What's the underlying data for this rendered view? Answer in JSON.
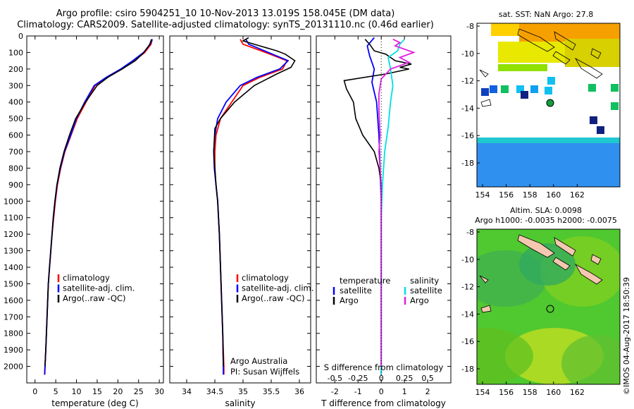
{
  "header": {
    "title_line1": "Argo profile: csiro 5904251_10 10-Nov-2013 13.019S 158.045E (DM data)",
    "title_line2": "Climatology: CARS2009. Satellite-adjusted climatology: synTS_20131110.nc (0.46d earlier)"
  },
  "colors": {
    "climatology": "#ff0000",
    "satellite": "#0000ff",
    "argo": "#000000",
    "satellite_s": "#00e0e0",
    "argo_s": "#e020e0"
  },
  "chart_data": [
    {
      "type": "line",
      "name": "temperature",
      "xlabel": "temperature (deg C)",
      "ylabel": "",
      "xlim": [
        -2,
        31
      ],
      "ylim": [
        0,
        2100
      ],
      "xticks": [
        0,
        5,
        10,
        15,
        20,
        25,
        30
      ],
      "yticks": [
        0,
        100,
        200,
        300,
        400,
        500,
        600,
        700,
        800,
        900,
        1000,
        1100,
        1200,
        1300,
        1400,
        1500,
        1600,
        1700,
        1800,
        1900,
        2000
      ],
      "legend": [
        "climatology",
        "satellite-adj. clim.",
        "Argo(..raw -QC)"
      ],
      "series": [
        {
          "name": "climatology",
          "color": "#ff0000",
          "points": [
            [
              28.3,
              20
            ],
            [
              28.0,
              50
            ],
            [
              26.5,
              100
            ],
            [
              24,
              150
            ],
            [
              21,
              200
            ],
            [
              17.5,
              250
            ],
            [
              14.5,
              300
            ],
            [
              12.3,
              400
            ],
            [
              10.2,
              500
            ],
            [
              8.7,
              600
            ],
            [
              7.2,
              700
            ],
            [
              6.2,
              800
            ],
            [
              5.4,
              900
            ],
            [
              4.9,
              1000
            ],
            [
              4.5,
              1100
            ],
            [
              4.1,
              1200
            ],
            [
              3.8,
              1300
            ],
            [
              3.5,
              1400
            ],
            [
              3.2,
              1500
            ],
            [
              2.9,
              1700
            ],
            [
              2.6,
              1900
            ],
            [
              2.4,
              2000
            ],
            [
              2.35,
              2050
            ]
          ]
        },
        {
          "name": "satellite-adj. clim.",
          "color": "#0000ff",
          "points": [
            [
              28.3,
              20
            ],
            [
              27.8,
              50
            ],
            [
              26.2,
              100
            ],
            [
              23.6,
              150
            ],
            [
              20.7,
              200
            ],
            [
              17.2,
              250
            ],
            [
              14.3,
              300
            ],
            [
              12.0,
              400
            ],
            [
              10.0,
              500
            ],
            [
              8.6,
              600
            ],
            [
              7.1,
              700
            ],
            [
              6.1,
              800
            ],
            [
              5.3,
              900
            ],
            [
              4.8,
              1000
            ],
            [
              4.4,
              1100
            ],
            [
              4.1,
              1200
            ],
            [
              3.8,
              1300
            ],
            [
              3.5,
              1400
            ],
            [
              3.2,
              1500
            ],
            [
              2.9,
              1700
            ],
            [
              2.6,
              1900
            ],
            [
              2.4,
              2000
            ],
            [
              2.3,
              2050
            ]
          ]
        },
        {
          "name": "Argo(..raw -QC)",
          "color": "#000000",
          "points": [
            [
              28.1,
              20
            ],
            [
              27.7,
              50
            ],
            [
              26.3,
              100
            ],
            [
              24.2,
              150
            ],
            [
              21.0,
              200
            ],
            [
              17.6,
              250
            ],
            [
              15.0,
              300
            ],
            [
              12.2,
              400
            ],
            [
              9.8,
              500
            ],
            [
              8.3,
              600
            ],
            [
              7.0,
              700
            ],
            [
              6.0,
              800
            ],
            [
              5.3,
              900
            ],
            [
              4.8,
              1000
            ],
            [
              4.4,
              1100
            ],
            [
              4.1,
              1200
            ],
            [
              3.8,
              1300
            ],
            [
              3.5,
              1400
            ],
            [
              3.2,
              1500
            ],
            [
              2.9,
              1700
            ],
            [
              2.6,
              1900
            ],
            [
              2.4,
              2000
            ]
          ]
        }
      ]
    },
    {
      "type": "line",
      "name": "salinity",
      "xlabel": "salinity",
      "xlim": [
        33.7,
        36.2
      ],
      "ylim": [
        0,
        2100
      ],
      "xticks": [
        34,
        34.5,
        35,
        35.5,
        36
      ],
      "legend": [
        "climatology",
        "satellite-adj. clim.",
        "Argo(..raw -QC)"
      ],
      "annotation": [
        "Argo Australia",
        "PI: Susan Wijffels"
      ],
      "series": [
        {
          "name": "climatology",
          "color": "#ff0000",
          "points": [
            [
              34.95,
              20
            ],
            [
              35.0,
              50
            ],
            [
              35.4,
              100
            ],
            [
              35.78,
              150
            ],
            [
              35.7,
              200
            ],
            [
              35.3,
              250
            ],
            [
              35.0,
              300
            ],
            [
              34.8,
              400
            ],
            [
              34.6,
              500
            ],
            [
              34.52,
              600
            ],
            [
              34.5,
              700
            ],
            [
              34.5,
              800
            ],
            [
              34.52,
              900
            ],
            [
              34.55,
              1000
            ],
            [
              34.58,
              1200
            ],
            [
              34.6,
              1400
            ],
            [
              34.62,
              1600
            ],
            [
              34.64,
              1800
            ],
            [
              34.66,
              2000
            ],
            [
              34.66,
              2050
            ]
          ]
        },
        {
          "name": "satellite-adj. clim.",
          "color": "#0000ff",
          "points": [
            [
              35.05,
              20
            ],
            [
              35.1,
              50
            ],
            [
              35.45,
              100
            ],
            [
              35.8,
              150
            ],
            [
              35.65,
              200
            ],
            [
              35.25,
              250
            ],
            [
              34.95,
              300
            ],
            [
              34.7,
              400
            ],
            [
              34.55,
              500
            ],
            [
              34.5,
              600
            ],
            [
              34.48,
              700
            ],
            [
              34.49,
              800
            ],
            [
              34.52,
              900
            ],
            [
              34.55,
              1000
            ],
            [
              34.58,
              1200
            ],
            [
              34.6,
              1400
            ],
            [
              34.62,
              1600
            ],
            [
              34.64,
              1800
            ],
            [
              34.65,
              2000
            ],
            [
              34.65,
              2050
            ]
          ]
        },
        {
          "name": "Argo(..raw -QC)",
          "color": "#000000",
          "points": [
            [
              35.1,
              10
            ],
            [
              35.0,
              30
            ],
            [
              35.3,
              60
            ],
            [
              35.6,
              90
            ],
            [
              35.75,
              110
            ],
            [
              35.92,
              150
            ],
            [
              35.85,
              190
            ],
            [
              35.6,
              230
            ],
            [
              35.2,
              300
            ],
            [
              34.85,
              400
            ],
            [
              34.6,
              500
            ],
            [
              34.5,
              560
            ],
            [
              34.48,
              700
            ],
            [
              34.5,
              800
            ],
            [
              34.52,
              900
            ],
            [
              34.55,
              1000
            ],
            [
              34.58,
              1200
            ],
            [
              34.6,
              1400
            ],
            [
              34.62,
              1600
            ],
            [
              34.64,
              1800
            ],
            [
              34.65,
              2000
            ]
          ]
        }
      ]
    },
    {
      "type": "line",
      "name": "difference",
      "xlabel": "T difference from climatology",
      "xlabel_top": "S difference from climatology",
      "xlim": [
        -2.8,
        3.0
      ],
      "ylim": [
        0,
        2100
      ],
      "xticks": [
        -2,
        -1,
        0,
        1,
        2
      ],
      "s_ticks": [
        "-0.5",
        "-0.25",
        "0",
        "0.25",
        "0.5"
      ],
      "s_tick_positions": [
        -2,
        -1,
        0,
        1,
        2
      ],
      "legend_temperature": [
        "temperature",
        "satellite",
        "Argo"
      ],
      "legend_salinity": [
        "salinity",
        "satellite",
        "Argo"
      ],
      "series": [
        {
          "name": "temperature satellite",
          "color": "#0000ff",
          "points": [
            [
              -0.3,
              10
            ],
            [
              -0.6,
              60
            ],
            [
              -0.5,
              120
            ],
            [
              -0.3,
              200
            ],
            [
              -0.4,
              280
            ],
            [
              -0.2,
              400
            ],
            [
              -0.1,
              600
            ],
            [
              -0.05,
              800
            ],
            [
              0,
              1000
            ],
            [
              0,
              2050
            ]
          ]
        },
        {
          "name": "temperature Argo",
          "color": "#000000",
          "points": [
            [
              -0.7,
              20
            ],
            [
              -0.5,
              50
            ],
            [
              -0.3,
              90
            ],
            [
              0.2,
              110
            ],
            [
              0.6,
              150
            ],
            [
              1.3,
              170
            ],
            [
              0.8,
              190
            ],
            [
              1.2,
              200
            ],
            [
              0.2,
              230
            ],
            [
              -1.6,
              270
            ],
            [
              -1.5,
              320
            ],
            [
              -1.2,
              400
            ],
            [
              -1.1,
              500
            ],
            [
              -0.8,
              600
            ],
            [
              -0.3,
              700
            ],
            [
              -0.1,
              800
            ],
            [
              0,
              900
            ],
            [
              0,
              2000
            ]
          ]
        },
        {
          "name": "salinity satellite",
          "color": "#00e0e0",
          "points": [
            [
              1.0,
              20
            ],
            [
              0.8,
              50
            ],
            [
              0.7,
              90
            ],
            [
              0.3,
              130
            ],
            [
              0.4,
              200
            ],
            [
              0.5,
              300
            ],
            [
              0.4,
              400
            ],
            [
              0.3,
              550
            ],
            [
              0.15,
              700
            ],
            [
              0.05,
              900
            ],
            [
              0,
              1100
            ],
            [
              0,
              2050
            ]
          ]
        },
        {
          "name": "salinity Argo",
          "color": "#e020e0",
          "points": [
            [
              0.5,
              20
            ],
            [
              0.8,
              40
            ],
            [
              0.6,
              60
            ],
            [
              1.4,
              100
            ],
            [
              0.8,
              130
            ],
            [
              1.2,
              160
            ],
            [
              0.4,
              200
            ],
            [
              0.0,
              260
            ],
            [
              -0.1,
              350
            ],
            [
              -0.1,
              450
            ],
            [
              -0.05,
              600
            ],
            [
              -0.1,
              700
            ],
            [
              0,
              900
            ],
            [
              0,
              2000
            ]
          ]
        }
      ]
    }
  ],
  "maps": {
    "sst": {
      "title": "sat. SST: NaN Argo: 27.8",
      "xticks": [
        "154",
        "156",
        "158",
        "160",
        "162"
      ],
      "yticks": [
        "-8",
        "-10",
        "-12",
        "-14",
        "-16",
        "-18"
      ]
    },
    "sla": {
      "title_line1": "Altim. SLA: 0.0098",
      "title_line2": "Argo h1000: -0.0035 h2000: -0.0075",
      "xticks": [
        "154",
        "156",
        "158",
        "160",
        "162"
      ],
      "yticks": [
        "-8",
        "-10",
        "-12",
        "-14",
        "-16",
        "-18"
      ]
    }
  },
  "footer": {
    "stamp": "©IMOS 04-Aug-2017 18:50:39"
  }
}
